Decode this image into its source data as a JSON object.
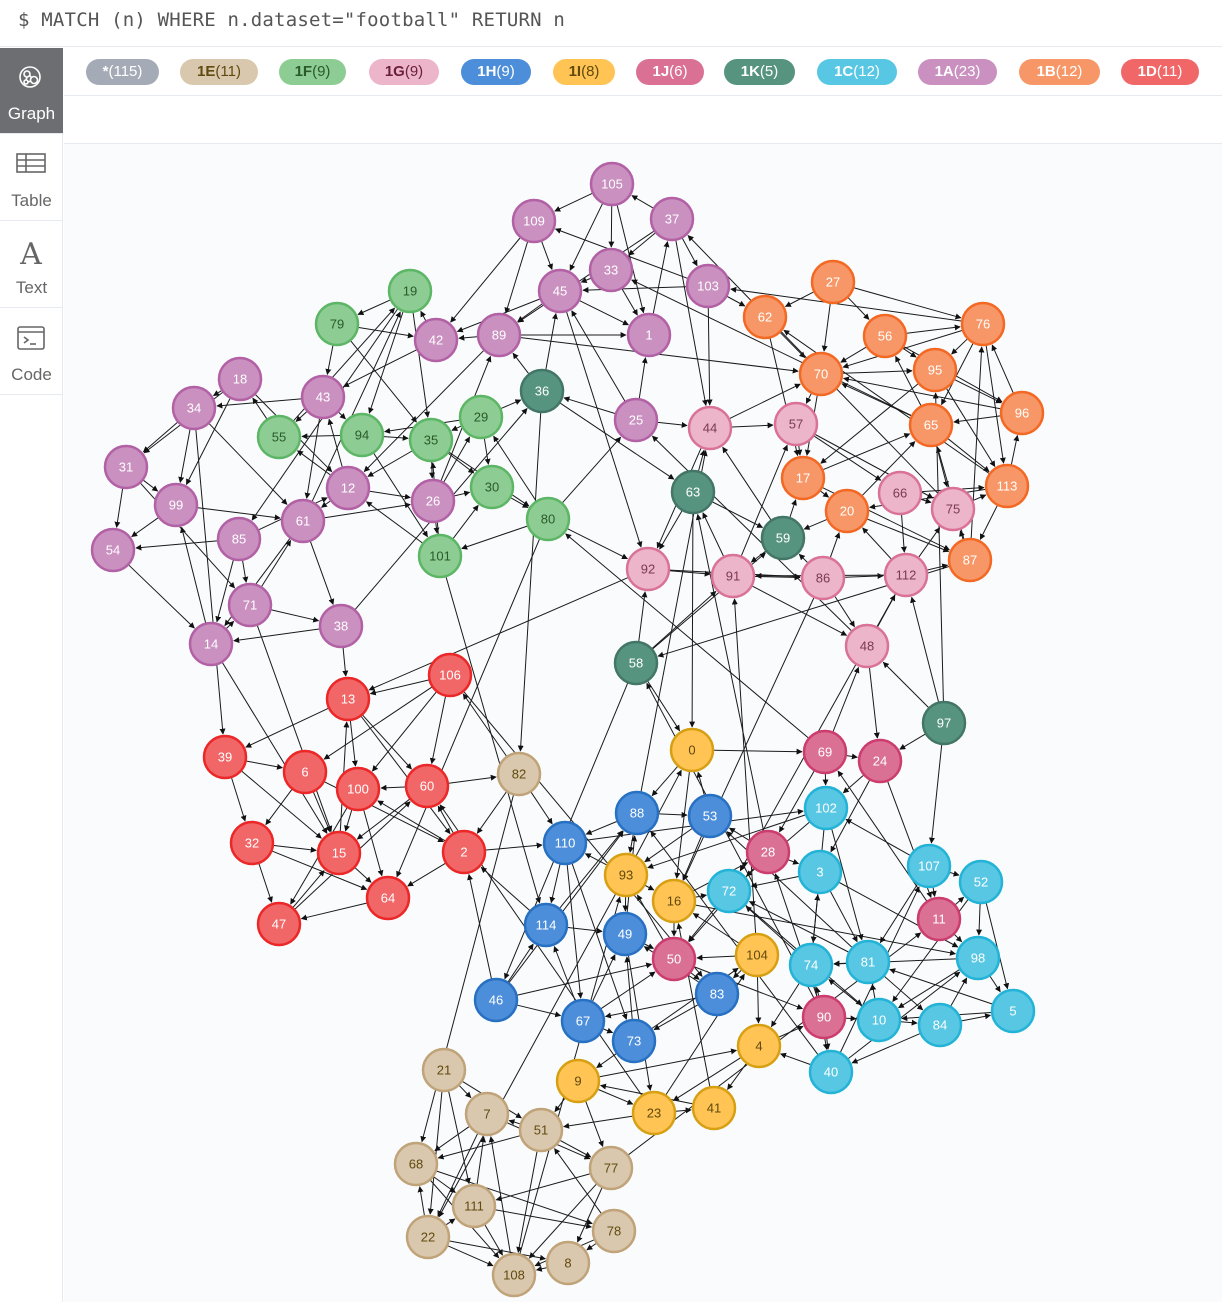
{
  "query": {
    "text": "$ MATCH (n) WHERE n.dataset=\"football\" RETURN n"
  },
  "sidebar": {
    "items": [
      {
        "label": "Graph",
        "icon": "graph-icon",
        "active": true
      },
      {
        "label": "Table",
        "icon": "table-icon",
        "active": false
      },
      {
        "label": "Text",
        "icon": "text-icon",
        "active": false
      },
      {
        "label": "Code",
        "icon": "code-icon",
        "active": false
      }
    ]
  },
  "legend": {
    "items": [
      {
        "name": "*",
        "count": "(115)",
        "bg": "#a5abb6",
        "fg": "#ffffff"
      },
      {
        "name": "1E",
        "count": "(11)",
        "bg": "#d9c8ae",
        "fg": "#604a0e"
      },
      {
        "name": "1F",
        "count": "(9)",
        "bg": "#8dcc93",
        "fg": "#2a5a2a"
      },
      {
        "name": "1G",
        "count": "(9)",
        "bg": "#ecb5c9",
        "fg": "#6a1f3a"
      },
      {
        "name": "1H",
        "count": "(9)",
        "bg": "#4c8eda",
        "fg": "#ffffff"
      },
      {
        "name": "1I",
        "count": "(8)",
        "bg": "#ffc454",
        "fg": "#604a0e"
      },
      {
        "name": "1J",
        "count": "(6)",
        "bg": "#da7194",
        "fg": "#ffffff"
      },
      {
        "name": "1K",
        "count": "(5)",
        "bg": "#569480",
        "fg": "#ffffff"
      },
      {
        "name": "1C",
        "count": "(12)",
        "bg": "#57c7e3",
        "fg": "#ffffff"
      },
      {
        "name": "1A",
        "count": "(23)",
        "bg": "#c990c0",
        "fg": "#ffffff"
      },
      {
        "name": "1B",
        "count": "(12)",
        "bg": "#f79767",
        "fg": "#ffffff"
      },
      {
        "name": "1D",
        "count": "(11)",
        "bg": "#f16667",
        "fg": "#ffffff"
      }
    ]
  },
  "graph": {
    "groups": {
      "1A": {
        "fill": "#c990c0",
        "stroke": "#b261a5",
        "text": "#ffffff"
      },
      "1B": {
        "fill": "#f79767",
        "stroke": "#f36924",
        "text": "#ffffff"
      },
      "1C": {
        "fill": "#57c7e3",
        "stroke": "#23b3d7",
        "text": "#ffffff"
      },
      "1D": {
        "fill": "#f16667",
        "stroke": "#eb2728",
        "text": "#ffffff"
      },
      "1E": {
        "fill": "#d9c8ae",
        "stroke": "#c0a378",
        "text": "#604a0e"
      },
      "1F": {
        "fill": "#8dcc93",
        "stroke": "#5db665",
        "text": "#2a5a2a"
      },
      "1G": {
        "fill": "#ecb5c9",
        "stroke": "#da7298",
        "text": "#7a3a52"
      },
      "1H": {
        "fill": "#4c8eda",
        "stroke": "#2870c2",
        "text": "#ffffff"
      },
      "1I": {
        "fill": "#ffc454",
        "stroke": "#d7a013",
        "text": "#604a0e"
      },
      "1J": {
        "fill": "#da7194",
        "stroke": "#cc3c6c",
        "text": "#ffffff"
      },
      "1K": {
        "fill": "#569480",
        "stroke": "#447666",
        "text": "#ffffff"
      }
    },
    "nodes": [
      {
        "id": "105",
        "g": "1A"
      },
      {
        "id": "109",
        "g": "1A"
      },
      {
        "id": "37",
        "g": "1A"
      },
      {
        "id": "33",
        "g": "1A"
      },
      {
        "id": "45",
        "g": "1A"
      },
      {
        "id": "103",
        "g": "1A"
      },
      {
        "id": "89",
        "g": "1A"
      },
      {
        "id": "42",
        "g": "1A"
      },
      {
        "id": "1",
        "g": "1A"
      },
      {
        "id": "43",
        "g": "1A"
      },
      {
        "id": "18",
        "g": "1A"
      },
      {
        "id": "34",
        "g": "1A"
      },
      {
        "id": "25",
        "g": "1A"
      },
      {
        "id": "31",
        "g": "1A"
      },
      {
        "id": "12",
        "g": "1A"
      },
      {
        "id": "26",
        "g": "1A"
      },
      {
        "id": "99",
        "g": "1A"
      },
      {
        "id": "61",
        "g": "1A"
      },
      {
        "id": "85",
        "g": "1A"
      },
      {
        "id": "54",
        "g": "1A"
      },
      {
        "id": "71",
        "g": "1A"
      },
      {
        "id": "38",
        "g": "1A"
      },
      {
        "id": "14",
        "g": "1A"
      },
      {
        "id": "27",
        "g": "1B"
      },
      {
        "id": "76",
        "g": "1B"
      },
      {
        "id": "62",
        "g": "1B"
      },
      {
        "id": "56",
        "g": "1B"
      },
      {
        "id": "70",
        "g": "1B"
      },
      {
        "id": "95",
        "g": "1B"
      },
      {
        "id": "96",
        "g": "1B"
      },
      {
        "id": "65",
        "g": "1B"
      },
      {
        "id": "17",
        "g": "1B"
      },
      {
        "id": "113",
        "g": "1B"
      },
      {
        "id": "20",
        "g": "1B"
      },
      {
        "id": "87",
        "g": "1B"
      },
      {
        "id": "19",
        "g": "1F"
      },
      {
        "id": "79",
        "g": "1F"
      },
      {
        "id": "29",
        "g": "1F"
      },
      {
        "id": "55",
        "g": "1F"
      },
      {
        "id": "94",
        "g": "1F"
      },
      {
        "id": "35",
        "g": "1F"
      },
      {
        "id": "30",
        "g": "1F"
      },
      {
        "id": "80",
        "g": "1F"
      },
      {
        "id": "101",
        "g": "1F"
      },
      {
        "id": "36",
        "g": "1K"
      },
      {
        "id": "63",
        "g": "1K"
      },
      {
        "id": "59",
        "g": "1K"
      },
      {
        "id": "58",
        "g": "1K"
      },
      {
        "id": "97",
        "g": "1K"
      },
      {
        "id": "44",
        "g": "1G"
      },
      {
        "id": "57",
        "g": "1G"
      },
      {
        "id": "66",
        "g": "1G"
      },
      {
        "id": "75",
        "g": "1G"
      },
      {
        "id": "92",
        "g": "1G"
      },
      {
        "id": "91",
        "g": "1G"
      },
      {
        "id": "86",
        "g": "1G"
      },
      {
        "id": "112",
        "g": "1G"
      },
      {
        "id": "48",
        "g": "1G"
      },
      {
        "id": "106",
        "g": "1D"
      },
      {
        "id": "13",
        "g": "1D"
      },
      {
        "id": "39",
        "g": "1D"
      },
      {
        "id": "6",
        "g": "1D"
      },
      {
        "id": "100",
        "g": "1D"
      },
      {
        "id": "60",
        "g": "1D"
      },
      {
        "id": "32",
        "g": "1D"
      },
      {
        "id": "15",
        "g": "1D"
      },
      {
        "id": "2",
        "g": "1D"
      },
      {
        "id": "64",
        "g": "1D"
      },
      {
        "id": "47",
        "g": "1D"
      },
      {
        "id": "0",
        "g": "1I"
      },
      {
        "id": "93",
        "g": "1I"
      },
      {
        "id": "16",
        "g": "1I"
      },
      {
        "id": "104",
        "g": "1I"
      },
      {
        "id": "4",
        "g": "1I"
      },
      {
        "id": "9",
        "g": "1I"
      },
      {
        "id": "23",
        "g": "1I"
      },
      {
        "id": "41",
        "g": "1I"
      },
      {
        "id": "69",
        "g": "1J"
      },
      {
        "id": "24",
        "g": "1J"
      },
      {
        "id": "28",
        "g": "1J"
      },
      {
        "id": "11",
        "g": "1J"
      },
      {
        "id": "50",
        "g": "1J"
      },
      {
        "id": "90",
        "g": "1J"
      },
      {
        "id": "88",
        "g": "1H"
      },
      {
        "id": "53",
        "g": "1H"
      },
      {
        "id": "110",
        "g": "1H"
      },
      {
        "id": "114",
        "g": "1H"
      },
      {
        "id": "49",
        "g": "1H"
      },
      {
        "id": "83",
        "g": "1H"
      },
      {
        "id": "46",
        "g": "1H"
      },
      {
        "id": "67",
        "g": "1H"
      },
      {
        "id": "73",
        "g": "1H"
      },
      {
        "id": "102",
        "g": "1C"
      },
      {
        "id": "107",
        "g": "1C"
      },
      {
        "id": "3",
        "g": "1C"
      },
      {
        "id": "52",
        "g": "1C"
      },
      {
        "id": "72",
        "g": "1C"
      },
      {
        "id": "74",
        "g": "1C"
      },
      {
        "id": "81",
        "g": "1C"
      },
      {
        "id": "98",
        "g": "1C"
      },
      {
        "id": "10",
        "g": "1C"
      },
      {
        "id": "84",
        "g": "1C"
      },
      {
        "id": "5",
        "g": "1C"
      },
      {
        "id": "40",
        "g": "1C"
      },
      {
        "id": "82",
        "g": "1E"
      },
      {
        "id": "21",
        "g": "1E"
      },
      {
        "id": "7",
        "g": "1E"
      },
      {
        "id": "51",
        "g": "1E"
      },
      {
        "id": "68",
        "g": "1E"
      },
      {
        "id": "77",
        "g": "1E"
      },
      {
        "id": "111",
        "g": "1E"
      },
      {
        "id": "78",
        "g": "1E"
      },
      {
        "id": "22",
        "g": "1E"
      },
      {
        "id": "8",
        "g": "1E"
      },
      {
        "id": "108",
        "g": "1E"
      }
    ]
  }
}
